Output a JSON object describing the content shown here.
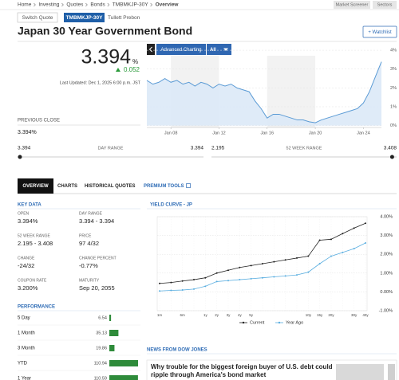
{
  "breadcrumb": [
    "Home",
    "Investing",
    "Quotes",
    "Bonds",
    "TMBMKJP-30Y",
    "Overview"
  ],
  "nav_buttons": [
    "Market Screener",
    "Sectors"
  ],
  "switch_quote": "Switch Quote",
  "ticker": "TMBMKJP-30Y",
  "source": "Tullett Prebon",
  "title": "Japan 30 Year Government Bond",
  "watchlist": "+ Watchlist",
  "quote": {
    "price": 3.394,
    "unit": "%",
    "change": 0.052,
    "last_updated": "Last Updated: Dec 1, 2025 6:00 p.m. JST",
    "previous_close_label": "PREVIOUS CLOSE",
    "previous_close": "3.394%"
  },
  "chart_controls": [
    "Advanced Charting",
    "All"
  ],
  "ranges": [
    {
      "low": 3.394,
      "label": "DAY RANGE",
      "high": 3.394
    },
    {
      "low": 2.195,
      "label": "52 WEEK RANGE",
      "high": 3.408
    }
  ],
  "tabs": [
    "OVERVIEW",
    "CHARTS",
    "HISTORICAL QUOTES",
    "PREMIUM TOOLS"
  ],
  "key_data": {
    "title": "KEY DATA",
    "items": [
      {
        "label": "OPEN",
        "value": "3.394%"
      },
      {
        "label": "DAY RANGE",
        "value": "3.394 - 3.394"
      },
      {
        "label": "52 WEEK RANGE",
        "value": "2.195 - 3.408"
      },
      {
        "label": "PRICE",
        "value": "97 4/32"
      },
      {
        "label": "CHANGE",
        "value": "-24/32"
      },
      {
        "label": "CHANGE PERCENT",
        "value": "-0.77%"
      },
      {
        "label": "COUPON RATE",
        "value": "3.200%"
      },
      {
        "label": "MATURITY",
        "value": "Sep 20, 2055"
      }
    ]
  },
  "performance": {
    "title": "PERFORMANCE",
    "rows": [
      {
        "period": "5 Day",
        "value": 6.54
      },
      {
        "period": "1 Month",
        "value": 35.13
      },
      {
        "period": "3 Month",
        "value": 19.86
      },
      {
        "period": "YTD",
        "value": 110.94
      },
      {
        "period": "1 Year",
        "value": 110.59
      }
    ]
  },
  "news": {
    "title": "NEWS FROM DOW JONES",
    "headline": "Why trouble for the biggest foreign buyer of U.S. debt could ripple through America's bond market"
  },
  "chart_data": [
    {
      "type": "area",
      "categories": [
        null,
        null,
        null,
        null,
        "Jan 08",
        null,
        null,
        null,
        null,
        null,
        null,
        null,
        "Jan 12",
        null,
        null,
        null,
        null,
        null,
        null,
        null,
        "Jan 16",
        null,
        null,
        null,
        null,
        null,
        null,
        null,
        "Jan 20",
        null,
        null,
        null,
        null,
        null,
        null,
        null,
        "Jan 24",
        null,
        null,
        null
      ],
      "values": [
        2.4,
        2.2,
        2.3,
        2.5,
        2.3,
        2.4,
        2.2,
        2.3,
        2.1,
        2.3,
        2.2,
        2.0,
        2.2,
        2.1,
        2.2,
        2.0,
        1.9,
        1.8,
        1.3,
        0.9,
        0.4,
        0.6,
        0.6,
        0.5,
        0.4,
        0.3,
        0.3,
        0.2,
        0.15,
        0.3,
        0.4,
        0.5,
        0.6,
        0.7,
        0.8,
        0.9,
        1.2,
        1.8,
        2.6,
        3.39
      ],
      "color": "#5b9bd5",
      "ylim": [
        -0.1,
        4.3
      ],
      "yticks": [
        {
          "value": 0,
          "label": "0%"
        },
        {
          "value": 1,
          "label": "1%"
        },
        {
          "value": 2,
          "label": "2%"
        },
        {
          "value": 3,
          "label": "3%"
        },
        {
          "value": 4,
          "label": "4%"
        }
      ],
      "grid": true
    },
    {
      "type": "line",
      "title": "YIELD CURVE - JP",
      "categories": [
        "1m",
        null,
        "6m",
        null,
        "1y",
        "2y",
        "3y",
        "4y",
        "5y",
        null,
        null,
        null,
        null,
        "10y",
        "15y",
        "20y",
        null,
        "30y",
        "40y"
      ],
      "series": [
        {
          "name": "Current",
          "color": "#222222",
          "values": [
            0.45,
            0.5,
            0.58,
            0.65,
            0.75,
            1.0,
            1.15,
            1.3,
            1.4,
            1.5,
            1.6,
            1.7,
            1.8,
            1.9,
            2.75,
            2.8,
            3.1,
            3.39,
            3.65
          ]
        },
        {
          "name": "Year Ago",
          "color": "#5aaee0",
          "values": [
            0.05,
            0.08,
            0.1,
            0.15,
            0.3,
            0.55,
            0.6,
            0.65,
            0.7,
            0.75,
            0.8,
            0.85,
            0.9,
            1.05,
            1.5,
            1.9,
            2.1,
            2.3,
            2.6
          ]
        }
      ],
      "ylim": [
        -1,
        4
      ],
      "yticks": [
        {
          "value": -1,
          "label": "-1.00%"
        },
        {
          "value": 0,
          "label": "0.00%"
        },
        {
          "value": 1,
          "label": "1.00%"
        },
        {
          "value": 2,
          "label": "2.00%"
        },
        {
          "value": 3,
          "label": "3.00%"
        },
        {
          "value": 4,
          "label": "4.00%"
        }
      ],
      "grid": true,
      "legend": "bottom"
    }
  ]
}
